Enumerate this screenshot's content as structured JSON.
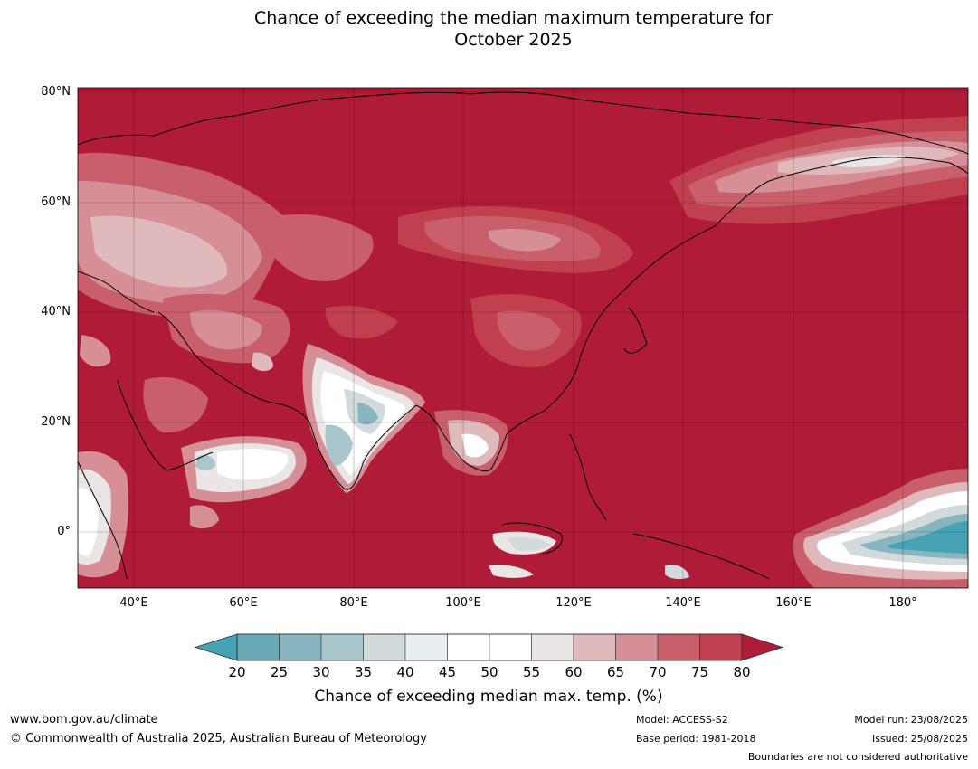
{
  "title": {
    "line1": "Chance of exceeding the median maximum temperature for",
    "line2": "October 2025"
  },
  "map": {
    "projection": "equirectangular",
    "lon_range": [
      30,
      192
    ],
    "lat_range": [
      -10,
      81
    ],
    "lat_ticks": [
      "80°N",
      "60°N",
      "40°N",
      "20°N",
      "0°"
    ],
    "lon_ticks": [
      "40°E",
      "60°E",
      "80°E",
      "100°E",
      "120°E",
      "140°E",
      "160°E",
      "180°"
    ],
    "dominant_category": "above 80%",
    "colors": {
      "above80": "#b01b37",
      "c75_80": "#c0404f",
      "c70_75": "#c95f6b",
      "c65_70": "#d68f97",
      "c60_65": "#e0b9bd",
      "c55_60": "#ebe6e6",
      "c45_55": "#ffffff",
      "c40_45": "#e9eff1",
      "c35_40": "#d2dadc",
      "c30_35": "#a8c6cb",
      "c25_30": "#89b5c0",
      "c20_25": "#6aa9b8",
      "below20": "#45a3b5"
    }
  },
  "colorbar": {
    "ticks": [
      "20",
      "25",
      "30",
      "35",
      "40",
      "45",
      "50",
      "55",
      "60",
      "65",
      "70",
      "75",
      "80"
    ],
    "label": "Chance of exceeding median max. temp. (%)",
    "extend": "both"
  },
  "footer": {
    "url": "www.bom.gov.au/climate",
    "copyright": "© Commonwealth of Australia 2025, Australian Bureau of Meteorology",
    "model": "Model: ACCESS-S2",
    "base_period": "Base period: 1981-2018",
    "model_run": "Model run: 23/08/2025",
    "issued": "Issued: 25/08/2025",
    "disclaimer": "Boundaries are not considered authoritative"
  }
}
